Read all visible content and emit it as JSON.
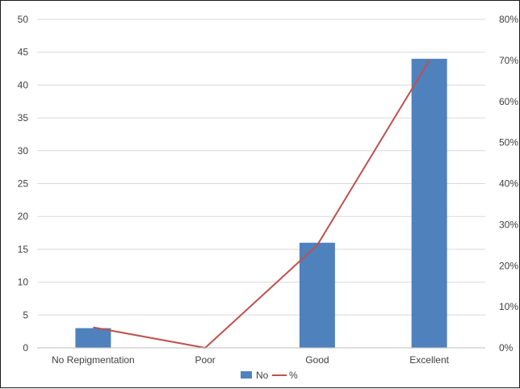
{
  "chart_data": {
    "type": "bar",
    "categories": [
      "No Repigmentation",
      "Poor",
      "Good",
      "Excellent"
    ],
    "series": [
      {
        "name": "No",
        "type": "bar",
        "axis": "left",
        "values": [
          3,
          0,
          16,
          44
        ],
        "color": "#4f81bd"
      },
      {
        "name": "%",
        "type": "line",
        "axis": "right",
        "values": [
          5,
          0,
          25,
          70
        ],
        "unit": "%",
        "color": "#c0504d"
      }
    ],
    "ylim": [
      0,
      50
    ],
    "y_ticks": [
      "0",
      "5",
      "10",
      "15",
      "20",
      "25",
      "30",
      "35",
      "40",
      "45",
      "50"
    ],
    "y2lim": [
      0,
      80
    ],
    "y2_ticks": [
      "0%",
      "10%",
      "20%",
      "30%",
      "40%",
      "50%",
      "60%",
      "70%",
      "80%"
    ],
    "grid": true,
    "legend": "bottom",
    "title": "",
    "xlabel": "",
    "ylabel": ""
  }
}
